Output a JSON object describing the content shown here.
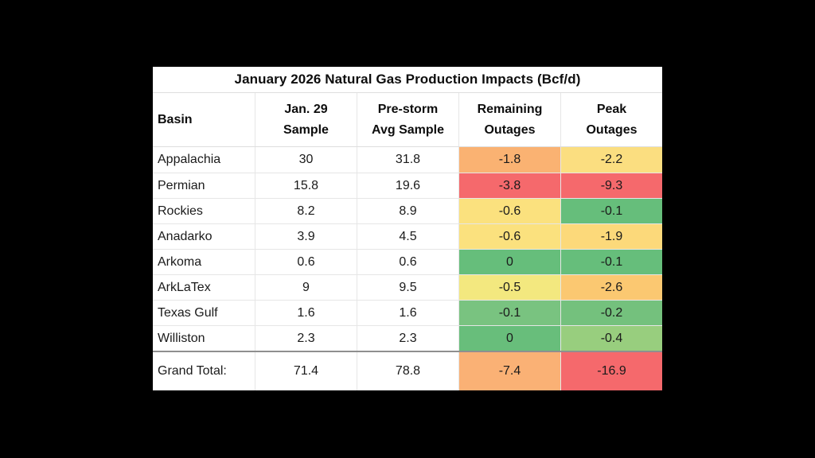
{
  "page": {
    "background_color": "#000000",
    "card_background_color": "#FFFFFF",
    "text_color": "#1A1A1A"
  },
  "chart_data": {
    "type": "table",
    "title": "January 2026 Natural Gas Production Impacts (Bcf/d)",
    "unit": "Bcf/d",
    "columns": [
      {
        "line1": "Basin",
        "line2": ""
      },
      {
        "line1": "Jan. 29",
        "line2": "Sample"
      },
      {
        "line1": "Pre-storm",
        "line2": "Avg Sample"
      },
      {
        "line1": "Remaining",
        "line2": "Outages"
      },
      {
        "line1": "Peak",
        "line2": "Outages"
      }
    ],
    "rows": [
      {
        "basin": "Appalachia",
        "jan29_sample": 30,
        "prestorm_avg_sample": 31.8,
        "remaining_outages": -1.8,
        "peak_outages": -2.2,
        "remaining_color": "#FAB272",
        "peak_color": "#FBDE80"
      },
      {
        "basin": "Permian",
        "jan29_sample": 15.8,
        "prestorm_avg_sample": 19.6,
        "remaining_outages": -3.8,
        "peak_outages": -9.3,
        "remaining_color": "#F5696C",
        "peak_color": "#F5696C"
      },
      {
        "basin": "Rockies",
        "jan29_sample": 8.2,
        "prestorm_avg_sample": 8.9,
        "remaining_outages": -0.6,
        "peak_outages": -0.1,
        "remaining_color": "#FBE17E",
        "peak_color": "#66BE7B"
      },
      {
        "basin": "Anadarko",
        "jan29_sample": 3.9,
        "prestorm_avg_sample": 4.5,
        "remaining_outages": -0.6,
        "peak_outages": -1.9,
        "remaining_color": "#FBE17E",
        "peak_color": "#FCD97A"
      },
      {
        "basin": "Arkoma",
        "jan29_sample": 0.6,
        "prestorm_avg_sample": 0.6,
        "remaining_outages": 0,
        "peak_outages": -0.1,
        "remaining_color": "#66BE7B",
        "peak_color": "#66BE7B"
      },
      {
        "basin": "ArkLaTex",
        "jan29_sample": 9,
        "prestorm_avg_sample": 9.5,
        "remaining_outages": -0.5,
        "peak_outages": -2.6,
        "remaining_color": "#F3E87F",
        "peak_color": "#FBC871"
      },
      {
        "basin": "Texas Gulf",
        "jan29_sample": 1.6,
        "prestorm_avg_sample": 1.6,
        "remaining_outages": -0.1,
        "peak_outages": -0.2,
        "remaining_color": "#79C380",
        "peak_color": "#74C17D"
      },
      {
        "basin": "Williston",
        "jan29_sample": 2.3,
        "prestorm_avg_sample": 2.3,
        "remaining_outages": 0,
        "peak_outages": -0.4,
        "remaining_color": "#68BE7B",
        "peak_color": "#98CE7E"
      }
    ],
    "total_row": {
      "basin": "Grand Total:",
      "jan29_sample": 71.4,
      "prestorm_avg_sample": 78.8,
      "remaining_outages": -7.4,
      "peak_outages": -16.9,
      "remaining_color": "#FAB175",
      "peak_color": "#F5696C"
    }
  }
}
